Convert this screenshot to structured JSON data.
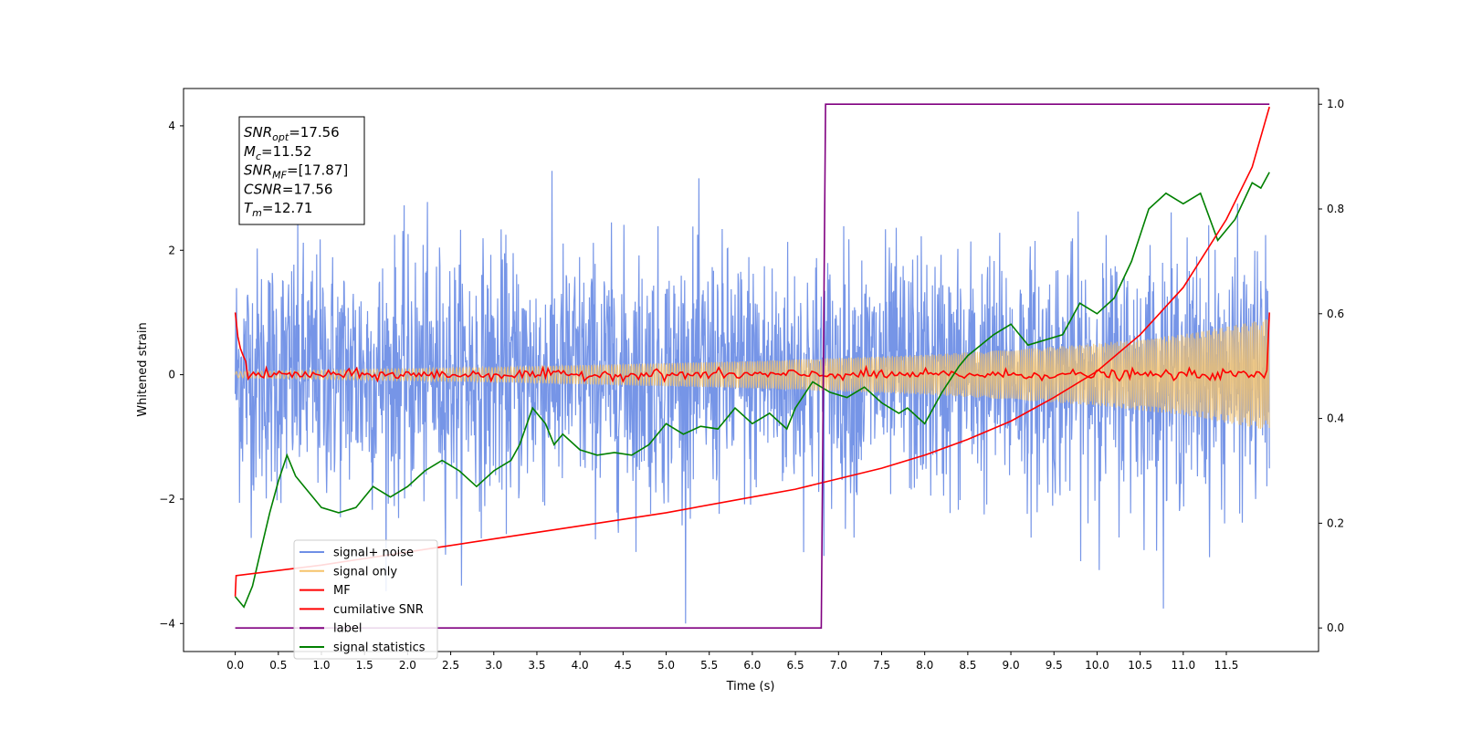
{
  "chart_data": {
    "type": "line",
    "xlabel": "Time (s)",
    "ylabel": "Whitened strain",
    "xlim": [
      -0.6,
      12.57
    ],
    "ylim": [
      -4.45,
      4.6
    ],
    "y2lim": [
      -0.045,
      1.03
    ],
    "x_ticks": [
      "0.0",
      "0.5",
      "1.0",
      "1.5",
      "2.0",
      "2.5",
      "3.0",
      "3.5",
      "4.0",
      "4.5",
      "5.0",
      "5.5",
      "6.0",
      "6.5",
      "7.0",
      "7.5",
      "8.0",
      "8.5",
      "9.0",
      "9.5",
      "10.0",
      "10.5",
      "11.0",
      "11.5"
    ],
    "y_ticks": [
      "-4",
      "-2",
      "0",
      "2",
      "4"
    ],
    "y2_ticks": [
      "0.0",
      "0.2",
      "0.4",
      "0.6",
      "0.8",
      "1.0"
    ],
    "grid": false,
    "legend_position": "lower-left",
    "info_box": {
      "lines": [
        {
          "main": "SNR",
          "sub": "opt",
          "value": "=17.56"
        },
        {
          "main": "M",
          "sub": "c",
          "value": "=11.52"
        },
        {
          "main": "SNR",
          "sub": "MF",
          "value": "=[17.87]"
        },
        {
          "main": "CSNR",
          "sub": "",
          "value": "=17.56"
        },
        {
          "main": "T",
          "sub": "m",
          "value": "=12.71"
        }
      ]
    },
    "series": [
      {
        "name": "signal+ noise",
        "color": "#6f8fe6",
        "axis": "left",
        "note": "noise amplitude ~1.0 std, x 0 to 12"
      },
      {
        "name": "signal only",
        "color": "#f5c36b",
        "axis": "left",
        "envelope": [
          [
            0,
            0.05
          ],
          [
            3,
            0.12
          ],
          [
            6,
            0.22
          ],
          [
            8,
            0.32
          ],
          [
            9,
            0.4
          ],
          [
            10,
            0.5
          ],
          [
            11,
            0.65
          ],
          [
            12,
            0.9
          ]
        ]
      },
      {
        "name": "MF",
        "color": "#ff0000",
        "axis": "left",
        "start_value": 1.0,
        "end_value": 1.0,
        "baseline": 0.0
      },
      {
        "name": "cumilative SNR",
        "color": "#ff0000",
        "axis": "right",
        "points": [
          [
            0,
            0.06
          ],
          [
            0.01,
            0.1
          ],
          [
            1,
            0.12
          ],
          [
            2,
            0.145
          ],
          [
            3,
            0.17
          ],
          [
            4,
            0.195
          ],
          [
            5,
            0.22
          ],
          [
            6,
            0.25
          ],
          [
            6.5,
            0.265
          ],
          [
            7,
            0.285
          ],
          [
            7.5,
            0.305
          ],
          [
            8,
            0.33
          ],
          [
            8.5,
            0.36
          ],
          [
            9,
            0.395
          ],
          [
            9.5,
            0.44
          ],
          [
            10,
            0.49
          ],
          [
            10.5,
            0.56
          ],
          [
            11,
            0.65
          ],
          [
            11.5,
            0.78
          ],
          [
            11.8,
            0.88
          ],
          [
            12,
            0.995
          ]
        ]
      },
      {
        "name": "label",
        "color": "#800080",
        "axis": "right",
        "points": [
          [
            0,
            0.0
          ],
          [
            6.8,
            0.0
          ],
          [
            6.85,
            1.0
          ],
          [
            12,
            1.0
          ]
        ]
      },
      {
        "name": "signal statistics",
        "color": "#008000",
        "axis": "right",
        "points": [
          [
            0,
            0.06
          ],
          [
            0.1,
            0.04
          ],
          [
            0.2,
            0.08
          ],
          [
            0.3,
            0.15
          ],
          [
            0.4,
            0.22
          ],
          [
            0.5,
            0.28
          ],
          [
            0.6,
            0.33
          ],
          [
            0.7,
            0.29
          ],
          [
            0.8,
            0.27
          ],
          [
            0.9,
            0.25
          ],
          [
            1.0,
            0.23
          ],
          [
            1.2,
            0.22
          ],
          [
            1.4,
            0.23
          ],
          [
            1.6,
            0.27
          ],
          [
            1.8,
            0.25
          ],
          [
            2.0,
            0.27
          ],
          [
            2.2,
            0.3
          ],
          [
            2.4,
            0.32
          ],
          [
            2.6,
            0.3
          ],
          [
            2.8,
            0.27
          ],
          [
            3.0,
            0.3
          ],
          [
            3.2,
            0.32
          ],
          [
            3.3,
            0.35
          ],
          [
            3.45,
            0.42
          ],
          [
            3.6,
            0.39
          ],
          [
            3.7,
            0.35
          ],
          [
            3.8,
            0.37
          ],
          [
            4.0,
            0.34
          ],
          [
            4.2,
            0.33
          ],
          [
            4.4,
            0.335
          ],
          [
            4.6,
            0.33
          ],
          [
            4.8,
            0.35
          ],
          [
            5.0,
            0.39
          ],
          [
            5.2,
            0.37
          ],
          [
            5.4,
            0.385
          ],
          [
            5.6,
            0.38
          ],
          [
            5.8,
            0.42
          ],
          [
            6.0,
            0.39
          ],
          [
            6.2,
            0.41
          ],
          [
            6.4,
            0.38
          ],
          [
            6.5,
            0.42
          ],
          [
            6.7,
            0.47
          ],
          [
            6.9,
            0.45
          ],
          [
            7.1,
            0.44
          ],
          [
            7.3,
            0.46
          ],
          [
            7.5,
            0.43
          ],
          [
            7.7,
            0.41
          ],
          [
            7.8,
            0.42
          ],
          [
            8.0,
            0.39
          ],
          [
            8.2,
            0.45
          ],
          [
            8.4,
            0.5
          ],
          [
            8.5,
            0.52
          ],
          [
            8.8,
            0.56
          ],
          [
            9.0,
            0.58
          ],
          [
            9.2,
            0.54
          ],
          [
            9.4,
            0.55
          ],
          [
            9.6,
            0.56
          ],
          [
            9.8,
            0.62
          ],
          [
            10.0,
            0.6
          ],
          [
            10.2,
            0.63
          ],
          [
            10.4,
            0.7
          ],
          [
            10.6,
            0.8
          ],
          [
            10.8,
            0.83
          ],
          [
            11.0,
            0.81
          ],
          [
            11.2,
            0.83
          ],
          [
            11.4,
            0.74
          ],
          [
            11.6,
            0.78
          ],
          [
            11.8,
            0.85
          ],
          [
            11.9,
            0.84
          ],
          [
            12.0,
            0.87
          ]
        ]
      }
    ]
  }
}
